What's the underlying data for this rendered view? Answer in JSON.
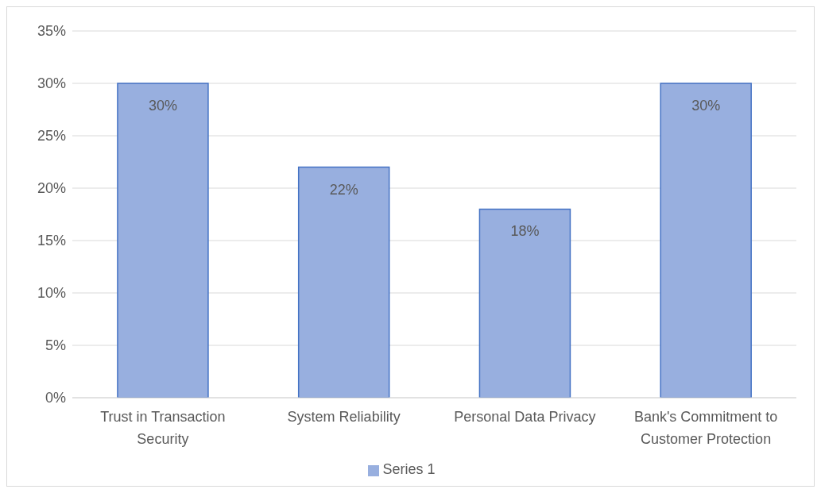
{
  "chart_data": {
    "type": "bar",
    "categories": [
      "Trust in Transaction Security",
      "System Reliability",
      "Personal Data Privacy",
      "Bank's Commitment to Customer Protection"
    ],
    "series": [
      {
        "name": "Series 1",
        "color": "#98afdf",
        "values": [
          30,
          22,
          18,
          30
        ],
        "value_labels": [
          "30%",
          "22%",
          "18%",
          "30%"
        ]
      }
    ],
    "ylim": [
      0,
      35
    ],
    "yticks": [
      {
        "value": 0,
        "label": "0%"
      },
      {
        "value": 5,
        "label": "5%"
      },
      {
        "value": 10,
        "label": "10%"
      },
      {
        "value": 15,
        "label": "15%"
      },
      {
        "value": 20,
        "label": "20%"
      },
      {
        "value": 25,
        "label": "25%"
      },
      {
        "value": 30,
        "label": "30%"
      },
      {
        "value": 35,
        "label": "35%"
      }
    ],
    "grid": "y",
    "legend": "bottom"
  }
}
